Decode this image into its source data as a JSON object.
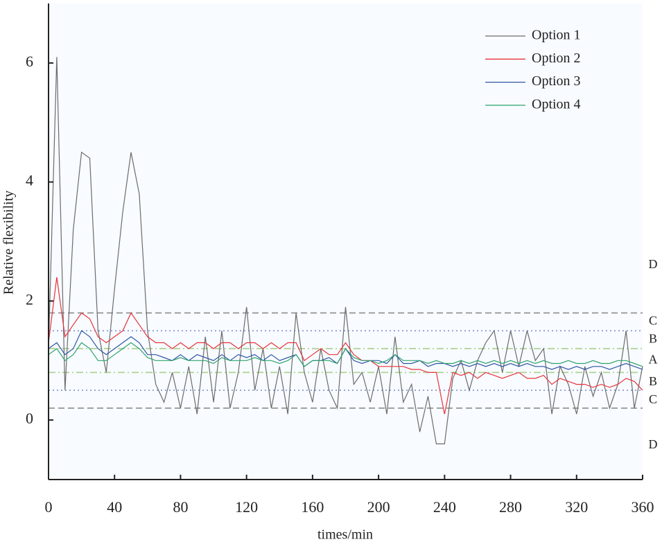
{
  "chart_data": {
    "type": "line",
    "xlabel": "times/min",
    "ylabel": "Relative flexibility",
    "x": [
      0,
      5,
      10,
      15,
      20,
      25,
      30,
      35,
      40,
      45,
      50,
      55,
      60,
      65,
      70,
      75,
      80,
      85,
      90,
      95,
      100,
      105,
      110,
      115,
      120,
      125,
      130,
      135,
      140,
      145,
      150,
      155,
      160,
      165,
      170,
      175,
      180,
      185,
      190,
      195,
      200,
      205,
      210,
      215,
      220,
      225,
      230,
      235,
      240,
      245,
      250,
      255,
      260,
      265,
      270,
      275,
      280,
      285,
      290,
      295,
      300,
      305,
      310,
      315,
      320,
      325,
      330,
      335,
      340,
      345,
      350,
      355,
      360
    ],
    "series": [
      {
        "name": "Option 1",
        "color": "#6b6b6b",
        "values": [
          1.2,
          6.1,
          0.5,
          3.2,
          4.5,
          4.4,
          1.5,
          0.8,
          2.2,
          3.5,
          4.5,
          3.8,
          1.5,
          0.6,
          0.3,
          0.8,
          0.2,
          0.9,
          0.1,
          1.4,
          0.3,
          1.5,
          0.2,
          0.8,
          1.9,
          0.5,
          1.2,
          0.2,
          0.9,
          0.1,
          1.8,
          0.8,
          0.3,
          1.2,
          0.5,
          0.2,
          1.9,
          0.6,
          0.8,
          0.3,
          0.9,
          0.1,
          1.4,
          0.3,
          0.6,
          -0.2,
          0.4,
          -0.4,
          -0.4,
          0.7,
          1.0,
          0.5,
          1.0,
          1.3,
          1.5,
          0.8,
          1.5,
          0.9,
          1.5,
          1.0,
          1.2,
          0.1,
          0.9,
          0.6,
          0.1,
          0.9,
          0.4,
          0.8,
          0.2,
          0.6,
          1.5,
          0.2,
          0.9
        ]
      },
      {
        "name": "Option 2",
        "color": "#e8333b",
        "values": [
          1.3,
          2.4,
          1.4,
          1.6,
          1.8,
          1.7,
          1.4,
          1.3,
          1.4,
          1.5,
          1.8,
          1.6,
          1.4,
          1.3,
          1.3,
          1.2,
          1.3,
          1.2,
          1.3,
          1.3,
          1.2,
          1.3,
          1.3,
          1.2,
          1.3,
          1.3,
          1.2,
          1.3,
          1.2,
          1.3,
          1.3,
          1.0,
          1.1,
          1.2,
          1.1,
          1.1,
          1.3,
          1.1,
          1.0,
          1.0,
          0.9,
          0.9,
          0.9,
          0.9,
          0.85,
          0.85,
          0.8,
          0.8,
          0.1,
          0.8,
          0.75,
          0.8,
          0.7,
          0.8,
          0.75,
          0.7,
          0.75,
          0.8,
          0.7,
          0.7,
          0.75,
          0.6,
          0.7,
          0.65,
          0.6,
          0.6,
          0.55,
          0.6,
          0.55,
          0.6,
          0.7,
          0.65,
          0.5
        ]
      },
      {
        "name": "Option 3",
        "color": "#2f56a6",
        "values": [
          1.2,
          1.3,
          1.1,
          1.2,
          1.5,
          1.4,
          1.2,
          1.1,
          1.2,
          1.3,
          1.4,
          1.3,
          1.1,
          1.1,
          1.05,
          1.0,
          1.1,
          1.0,
          1.1,
          1.05,
          1.0,
          1.1,
          1.0,
          1.1,
          1.05,
          1.1,
          1.0,
          1.1,
          1.0,
          1.05,
          1.1,
          0.9,
          1.0,
          1.0,
          1.05,
          0.95,
          1.2,
          1.0,
          0.95,
          1.0,
          1.0,
          0.95,
          1.1,
          0.95,
          0.95,
          1.0,
          0.9,
          0.95,
          0.95,
          0.9,
          0.95,
          0.9,
          0.95,
          0.9,
          0.95,
          0.9,
          0.95,
          0.9,
          0.95,
          0.9,
          0.9,
          0.85,
          0.9,
          0.85,
          0.9,
          0.85,
          0.9,
          0.9,
          0.85,
          0.9,
          0.95,
          0.9,
          0.85
        ]
      },
      {
        "name": "Option 4",
        "color": "#2ea36b",
        "values": [
          1.1,
          1.2,
          1.0,
          1.1,
          1.3,
          1.2,
          1.0,
          1.0,
          1.1,
          1.2,
          1.3,
          1.2,
          1.05,
          1.0,
          1.0,
          1.0,
          1.05,
          1.0,
          1.0,
          1.0,
          0.95,
          1.05,
          1.0,
          1.0,
          1.0,
          1.05,
          1.0,
          1.0,
          0.95,
          1.0,
          1.1,
          0.9,
          1.0,
          1.0,
          1.0,
          0.95,
          1.2,
          1.05,
          1.0,
          1.0,
          0.95,
          1.0,
          1.1,
          1.0,
          1.0,
          1.0,
          0.95,
          1.0,
          0.95,
          0.95,
          1.0,
          0.95,
          1.0,
          0.95,
          1.0,
          0.95,
          1.0,
          0.95,
          1.0,
          0.95,
          1.0,
          0.95,
          0.95,
          1.0,
          0.95,
          0.95,
          1.0,
          0.95,
          0.95,
          1.0,
          1.0,
          0.95,
          0.9
        ]
      }
    ],
    "hlines": [
      {
        "y": 1.8,
        "color": "#8c8c8c",
        "style": "dashed"
      },
      {
        "y": 1.5,
        "color": "#8090cc",
        "style": "dotted"
      },
      {
        "y": 1.2,
        "color": "#a8d08a",
        "style": "dashdot"
      },
      {
        "y": 0.8,
        "color": "#a8d08a",
        "style": "dashdot"
      },
      {
        "y": 0.5,
        "color": "#8090cc",
        "style": "dotted"
      },
      {
        "y": 0.2,
        "color": "#8c8c8c",
        "style": "dashed"
      }
    ],
    "zones": [
      {
        "label": "D",
        "y": 2.6
      },
      {
        "label": "C",
        "y": 1.65
      },
      {
        "label": "B",
        "y": 1.35
      },
      {
        "label": "A",
        "y": 1.0
      },
      {
        "label": "B",
        "y": 0.63
      },
      {
        "label": "C",
        "y": 0.33
      },
      {
        "label": "D",
        "y": -0.43
      }
    ],
    "xlim": [
      0,
      360
    ],
    "xticks": [
      0,
      40,
      80,
      120,
      160,
      200,
      240,
      280,
      320,
      360
    ],
    "ylim": [
      -1,
      7
    ],
    "yticks": [
      0,
      2,
      4,
      6
    ],
    "legend": "upper-right"
  }
}
